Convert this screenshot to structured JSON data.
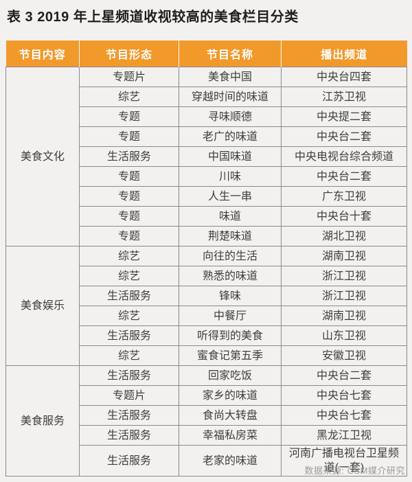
{
  "title": "表 3 2019 年上星频道收视较高的美食栏目分类",
  "source_note": "数据来源: CSM媒介研究",
  "colors": {
    "header_bg": "#F2992B",
    "header_text": "#FFFFFF",
    "border": "#8A8A8A",
    "cell_text": "#3E3E3E",
    "page_bg": "#F2F1EF",
    "note_text": "#9B9B9B"
  },
  "table": {
    "headers": [
      "节目内容",
      "节目形态",
      "节目名称",
      "播出频道"
    ],
    "groups": [
      {
        "category": "美食文化",
        "rows": [
          {
            "format": "专题片",
            "name": "美食中国",
            "channel": "中央台四套"
          },
          {
            "format": "综艺",
            "name": "穿越时间的味道",
            "channel": "江苏卫视"
          },
          {
            "format": "专题",
            "name": "寻味顺德",
            "channel": "中央提二套"
          },
          {
            "format": "专题",
            "name": "老广的味道",
            "channel": "中央台二套"
          },
          {
            "format": "生活服务",
            "name": "中国味道",
            "channel": "中央电视台综合频道"
          },
          {
            "format": "专题",
            "name": "川味",
            "channel": "中央台二套"
          },
          {
            "format": "专题",
            "name": "人生一串",
            "channel": "广东卫视"
          },
          {
            "format": "专题",
            "name": "味道",
            "channel": "中央台十套"
          },
          {
            "format": "专题",
            "name": "荆楚味道",
            "channel": "湖北卫视"
          }
        ]
      },
      {
        "category": "美食娱乐",
        "rows": [
          {
            "format": "综艺",
            "name": "向往的生活",
            "channel": "湖南卫视"
          },
          {
            "format": "综艺",
            "name": "熟悉的味道",
            "channel": "浙江卫视"
          },
          {
            "format": "生活服务",
            "name": "锋味",
            "channel": "浙江卫视"
          },
          {
            "format": "综艺",
            "name": "中餐厅",
            "channel": "湖南卫视"
          },
          {
            "format": "生活服务",
            "name": "听得到的美食",
            "channel": "山东卫视"
          },
          {
            "format": "综艺",
            "name": "蜜食记第五季",
            "channel": "安徽卫视"
          }
        ]
      },
      {
        "category": "美食服务",
        "rows": [
          {
            "format": "生活服务",
            "name": "回家吃饭",
            "channel": "中央台二套"
          },
          {
            "format": "专题片",
            "name": "家乡的味道",
            "channel": "中央台七套"
          },
          {
            "format": "生活服务",
            "name": "食尚大转盘",
            "channel": "中央台七套"
          },
          {
            "format": "生活服务",
            "name": "幸福私房菜",
            "channel": "黑龙江卫视"
          },
          {
            "format": "生活服务",
            "name": "老家的味道",
            "channel": "河南广播电视台卫星频道(一套)"
          }
        ]
      }
    ]
  }
}
